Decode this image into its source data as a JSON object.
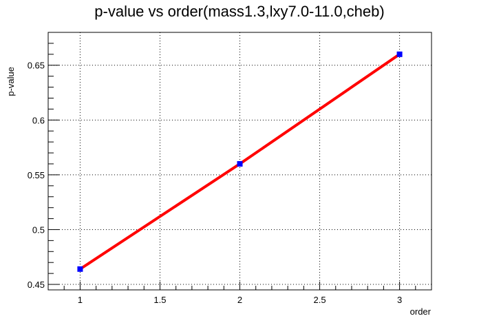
{
  "chart_data": {
    "type": "line",
    "title": "p-value vs order(mass1.3,lxy7.0-11.0,cheb)",
    "xlabel": "order",
    "ylabel": "p-value",
    "xlim": [
      0.8,
      3.2
    ],
    "ylim": [
      0.445,
      0.68
    ],
    "x_ticks": [
      1,
      1.5,
      2,
      2.5,
      3
    ],
    "x_tick_labels": [
      "1",
      "1.5",
      "2",
      "2.5",
      "3"
    ],
    "y_ticks": [
      0.45,
      0.5,
      0.55,
      0.6,
      0.65
    ],
    "y_tick_labels": [
      "0.45",
      "0.5",
      "0.55",
      "0.6",
      "0.65"
    ],
    "grid": true,
    "series": [
      {
        "x": [
          1,
          2,
          3
        ],
        "values": [
          0.464,
          0.56,
          0.66
        ],
        "line_color": "#ff0000",
        "marker_color": "#0000ff",
        "marker": "square"
      }
    ]
  }
}
